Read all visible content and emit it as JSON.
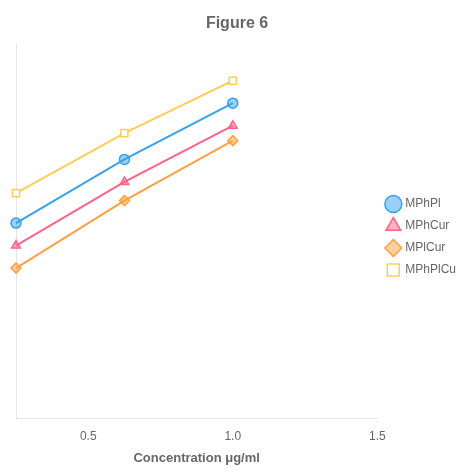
{
  "chart_data": {
    "type": "line",
    "title": "Figure 6",
    "xlabel": "Concentration μg/ml",
    "x": [
      0.25,
      0.625,
      1.0
    ],
    "series": [
      {
        "name": "MPhPl",
        "values": [
          0.52,
          0.69,
          0.84
        ],
        "marker": "circle"
      },
      {
        "name": "MPhCur",
        "values": [
          0.46,
          0.63,
          0.78
        ],
        "marker": "triangle"
      },
      {
        "name": "MPlCur",
        "values": [
          0.4,
          0.58,
          0.74
        ],
        "marker": "diamond"
      },
      {
        "name": "MPhPlCu",
        "values": [
          0.6,
          0.76,
          0.9
        ],
        "marker": "open_square"
      }
    ],
    "xlim": [
      0.25,
      1.5
    ],
    "xticks": [
      0.5,
      {
        "value": 1.0,
        "label": "1.0"
      },
      1.5
    ],
    "ylim": [
      0.0,
      1.0
    ],
    "yticks": [],
    "grid": false,
    "legend": "right",
    "tick_labels": "x"
  }
}
